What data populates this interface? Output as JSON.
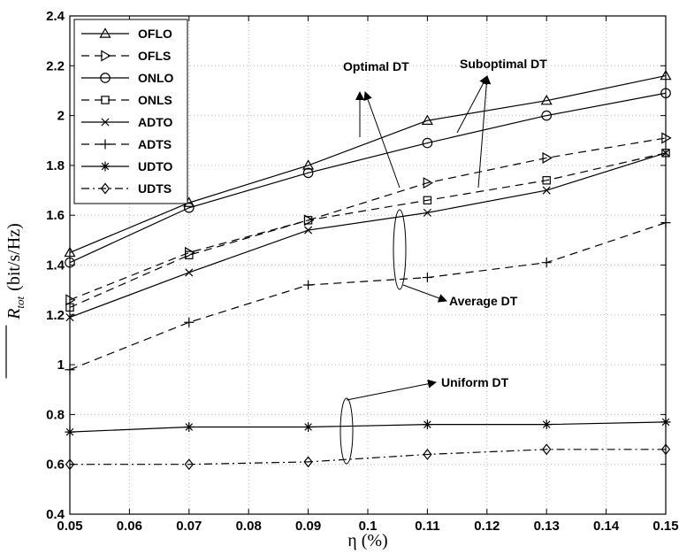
{
  "chart_data": {
    "type": "line",
    "xlabel": "η (%)",
    "ylabel_main": "R",
    "ylabel_sub": "tot",
    "ylabel_units": "(bit/s/Hz)",
    "xlim": [
      0.05,
      0.15
    ],
    "ylim": [
      0.4,
      2.4
    ],
    "grid": true,
    "legend_position": "top-left",
    "x": [
      0.05,
      0.07,
      0.09,
      0.11,
      0.13,
      0.15
    ],
    "x_ticks": [
      "0.05",
      "0.06",
      "0.07",
      "0.08",
      "0.09",
      "0.1",
      "0.11",
      "0.12",
      "0.13",
      "0.14",
      "0.15"
    ],
    "y_ticks": [
      "0.4",
      "0.6",
      "0.8",
      "1",
      "1.2",
      "1.4",
      "1.6",
      "1.8",
      "2",
      "2.2",
      "2.4"
    ],
    "series": [
      {
        "name": "OFLO",
        "values": [
          1.45,
          1.65,
          1.8,
          1.98,
          2.06,
          2.16
        ],
        "dash": "solid",
        "marker": "triangle-up"
      },
      {
        "name": "OFLS",
        "values": [
          1.26,
          1.45,
          1.58,
          1.73,
          1.83,
          1.91
        ],
        "dash": "dashed",
        "marker": "triangle-right"
      },
      {
        "name": "ONLO",
        "values": [
          1.41,
          1.63,
          1.77,
          1.89,
          2.0,
          2.09
        ],
        "dash": "solid",
        "marker": "circle"
      },
      {
        "name": "ONLS",
        "values": [
          1.23,
          1.44,
          1.58,
          1.66,
          1.74,
          1.85
        ],
        "dash": "dashed",
        "marker": "square"
      },
      {
        "name": "ADTO",
        "values": [
          1.19,
          1.37,
          1.54,
          1.61,
          1.7,
          1.85
        ],
        "dash": "solid",
        "marker": "x"
      },
      {
        "name": "ADTS",
        "values": [
          0.98,
          1.17,
          1.32,
          1.35,
          1.41,
          1.57
        ],
        "dash": "dashed",
        "marker": "plus"
      },
      {
        "name": "UDTO",
        "values": [
          0.73,
          0.75,
          0.75,
          0.76,
          0.76,
          0.77
        ],
        "dash": "solid",
        "marker": "star"
      },
      {
        "name": "UDTS",
        "values": [
          0.6,
          0.6,
          0.61,
          0.64,
          0.66,
          0.66
        ],
        "dash": "dashdot",
        "marker": "diamond"
      }
    ],
    "annotations": [
      {
        "text": "Optimal DT"
      },
      {
        "text": "Suboptimal DT"
      },
      {
        "text": "Average DT"
      },
      {
        "text": "Uniform DT"
      }
    ]
  }
}
